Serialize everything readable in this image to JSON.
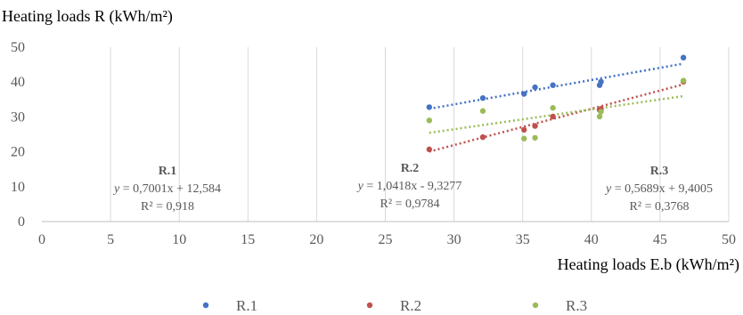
{
  "chart_data": {
    "type": "scatter",
    "xlabel": "Heating loads E.b (kWh/m²)",
    "ylabel": "Heating loads R (kWh/m²)",
    "xlim": [
      0,
      50
    ],
    "ylim": [
      0,
      50
    ],
    "xticks": [
      0,
      5,
      10,
      15,
      20,
      25,
      30,
      35,
      40,
      45,
      50
    ],
    "yticks": [
      0,
      10,
      20,
      30,
      40,
      50
    ],
    "grid": "vertical",
    "legend_position": "bottom",
    "series": [
      {
        "name": "R.1",
        "color": "#4472C4",
        "points": [
          [
            28.2,
            32.8
          ],
          [
            32.1,
            35.4
          ],
          [
            35.1,
            36.6
          ],
          [
            35.9,
            38.5
          ],
          [
            37.2,
            39.1
          ],
          [
            40.6,
            39.1
          ],
          [
            40.7,
            40.1
          ],
          [
            46.7,
            47.0
          ]
        ],
        "trend": {
          "slope": 0.7001,
          "intercept": 12.584,
          "x_range": [
            28.2,
            46.7
          ]
        }
      },
      {
        "name": "R.2",
        "color": "#C0504D",
        "points": [
          [
            28.2,
            20.7
          ],
          [
            32.1,
            24.2
          ],
          [
            35.1,
            26.3
          ],
          [
            35.9,
            27.4
          ],
          [
            37.2,
            30.1
          ],
          [
            40.6,
            32.0
          ],
          [
            40.7,
            32.3
          ],
          [
            46.7,
            40.1
          ]
        ],
        "trend": {
          "slope": 1.0418,
          "intercept": -9.3277,
          "x_range": [
            28.2,
            46.7
          ]
        }
      },
      {
        "name": "R.3",
        "color": "#9BBB59",
        "points": [
          [
            28.2,
            29.0
          ],
          [
            32.1,
            31.7
          ],
          [
            35.1,
            23.8
          ],
          [
            35.9,
            24.0
          ],
          [
            37.2,
            32.6
          ],
          [
            40.6,
            30.1
          ],
          [
            40.7,
            31.5
          ],
          [
            46.7,
            40.4
          ]
        ],
        "trend": {
          "slope": 0.5689,
          "intercept": 9.4005,
          "x_range": [
            28.2,
            46.7
          ]
        }
      }
    ],
    "annotations": [
      {
        "name": "R.1",
        "eq_prefix": "y",
        "eq_rest": " = 0,7001x + 12,584",
        "r2": "R² = 0,918"
      },
      {
        "name": "R.2",
        "eq_prefix": "y",
        "eq_rest": " = 1,0418x - 9,3277",
        "r2": "R² = 0,9784"
      },
      {
        "name": "R.3",
        "eq_prefix": "y",
        "eq_rest": " = 0,5689x + 9,4005",
        "r2": "R² = 0,3768"
      }
    ]
  }
}
